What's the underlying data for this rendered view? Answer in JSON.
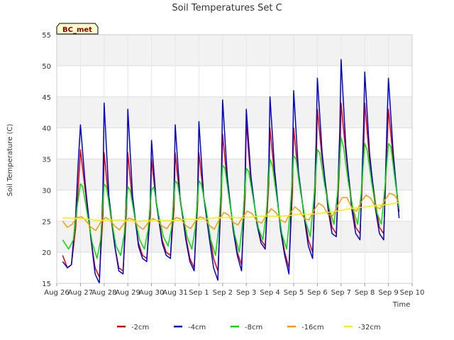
{
  "chart_data": {
    "type": "line",
    "title": "Soil Temperatures Set C",
    "xlabel": "Time",
    "ylabel": "Soil Temperature (C)",
    "badge": "BC_met",
    "ylim": [
      15,
      55
    ],
    "yticks": [
      15,
      20,
      25,
      30,
      35,
      40,
      45,
      50,
      55
    ],
    "xlim": [
      0,
      15
    ],
    "xticks": [
      {
        "x": 0,
        "label": "Aug 26"
      },
      {
        "x": 1,
        "label": "Aug 27"
      },
      {
        "x": 2,
        "label": "Aug 28"
      },
      {
        "x": 3,
        "label": "Aug 29"
      },
      {
        "x": 4,
        "label": "Aug 30"
      },
      {
        "x": 5,
        "label": "Aug 31"
      },
      {
        "x": 6,
        "label": "Sep 1"
      },
      {
        "x": 7,
        "label": "Sep 2"
      },
      {
        "x": 8,
        "label": "Sep 3"
      },
      {
        "x": 9,
        "label": "Sep 4"
      },
      {
        "x": 10,
        "label": "Sep 5"
      },
      {
        "x": 11,
        "label": "Sep 6"
      },
      {
        "x": 12,
        "label": "Sep 7"
      },
      {
        "x": 13,
        "label": "Sep 8"
      },
      {
        "x": 14,
        "label": "Sep 9"
      },
      {
        "x": 15,
        "label": "Sep 10"
      }
    ],
    "grid": true,
    "legend_position": "bottom",
    "series": [
      {
        "name": "-2cm",
        "color": "#dd0000",
        "x": [
          0.25,
          0.45,
          0.62,
          0.8,
          0.9,
          1.0,
          1.2,
          1.45,
          1.62,
          1.8,
          1.95,
          2.0,
          2.2,
          2.45,
          2.62,
          2.8,
          2.95,
          3.0,
          3.2,
          3.45,
          3.62,
          3.8,
          3.95,
          4.0,
          4.2,
          4.45,
          4.62,
          4.8,
          4.95,
          5.0,
          5.2,
          5.45,
          5.62,
          5.8,
          5.95,
          6.0,
          6.2,
          6.45,
          6.62,
          6.8,
          6.95,
          7.0,
          7.2,
          7.45,
          7.62,
          7.8,
          7.95,
          8.0,
          8.2,
          8.45,
          8.62,
          8.8,
          8.95,
          9.0,
          9.2,
          9.45,
          9.62,
          9.8,
          9.95,
          10.0,
          10.2,
          10.45,
          10.62,
          10.8,
          10.95,
          11.0,
          11.2,
          11.45,
          11.62,
          11.8,
          11.95,
          12.0,
          12.2,
          12.45,
          12.62,
          12.8,
          12.95,
          13.0,
          13.2,
          13.45,
          13.62,
          13.8,
          13.95,
          14.0,
          14.2,
          14.45
        ],
        "y": [
          19.5,
          17.5,
          18.0,
          24.0,
          30.0,
          36.5,
          30.0,
          22.0,
          17.5,
          16.0,
          26.0,
          36.0,
          28.0,
          21.0,
          17.5,
          17.0,
          27.0,
          36.0,
          28.0,
          21.5,
          19.5,
          19.0,
          26.0,
          35.0,
          28.0,
          22.0,
          20.0,
          19.5,
          27.0,
          36.0,
          28.5,
          22.5,
          19.0,
          17.5,
          28.0,
          36.0,
          29.0,
          23.0,
          19.0,
          17.0,
          29.0,
          39.0,
          31.0,
          24.0,
          20.0,
          18.0,
          29.0,
          41.0,
          31.0,
          25.0,
          22.0,
          21.0,
          31.0,
          40.0,
          32.0,
          24.0,
          20.0,
          17.5,
          30.0,
          40.0,
          32.0,
          26.0,
          22.0,
          20.0,
          34.0,
          43.0,
          35.0,
          28.0,
          24.0,
          23.0,
          35.0,
          44.0,
          36.0,
          28.0,
          24.0,
          23.0,
          36.0,
          44.0,
          35.0,
          28.0,
          24.0,
          23.0,
          38.0,
          43.0,
          35.0,
          26.5
        ]
      },
      {
        "name": "-4cm",
        "color": "#0000cc",
        "x": [
          0.25,
          0.45,
          0.62,
          0.8,
          0.9,
          1.0,
          1.2,
          1.45,
          1.62,
          1.8,
          1.95,
          2.0,
          2.2,
          2.45,
          2.62,
          2.8,
          2.95,
          3.0,
          3.2,
          3.45,
          3.62,
          3.8,
          3.95,
          4.0,
          4.2,
          4.45,
          4.62,
          4.8,
          4.95,
          5.0,
          5.2,
          5.45,
          5.62,
          5.8,
          5.95,
          6.0,
          6.2,
          6.45,
          6.62,
          6.8,
          6.95,
          7.0,
          7.2,
          7.45,
          7.62,
          7.8,
          7.95,
          8.0,
          8.2,
          8.45,
          8.62,
          8.8,
          8.95,
          9.0,
          9.2,
          9.45,
          9.62,
          9.8,
          9.95,
          10.0,
          10.2,
          10.45,
          10.62,
          10.8,
          10.95,
          11.0,
          11.2,
          11.45,
          11.62,
          11.8,
          11.95,
          12.0,
          12.2,
          12.45,
          12.62,
          12.8,
          12.95,
          13.0,
          13.2,
          13.45,
          13.62,
          13.8,
          13.95,
          14.0,
          14.2,
          14.45
        ],
        "y": [
          18.5,
          17.5,
          18.0,
          26.0,
          34.0,
          40.5,
          31.0,
          22.0,
          16.5,
          15.0,
          30.0,
          44.0,
          29.0,
          21.0,
          17.0,
          16.5,
          30.0,
          43.0,
          29.0,
          21.0,
          19.0,
          18.5,
          28.0,
          38.0,
          28.0,
          21.5,
          19.5,
          19.0,
          30.0,
          40.5,
          29.0,
          22.0,
          18.5,
          17.0,
          30.0,
          41.0,
          29.0,
          22.0,
          17.5,
          15.5,
          32.0,
          44.5,
          32.0,
          23.5,
          19.5,
          17.0,
          32.0,
          43.0,
          32.0,
          24.5,
          21.5,
          20.5,
          34.0,
          45.0,
          33.0,
          23.5,
          19.5,
          16.5,
          34.0,
          46.0,
          33.0,
          25.5,
          21.0,
          19.0,
          38.0,
          48.0,
          36.0,
          27.0,
          23.0,
          22.5,
          40.0,
          51.0,
          37.0,
          27.0,
          23.0,
          22.0,
          40.0,
          49.0,
          36.0,
          27.0,
          23.0,
          22.0,
          42.0,
          48.0,
          36.0,
          25.5
        ]
      },
      {
        "name": "-8cm",
        "color": "#00dd00",
        "x": [
          0.25,
          0.5,
          0.7,
          0.85,
          1.0,
          1.1,
          1.3,
          1.5,
          1.7,
          1.85,
          2.0,
          2.1,
          2.3,
          2.5,
          2.7,
          2.85,
          3.0,
          3.1,
          3.3,
          3.5,
          3.7,
          3.85,
          4.0,
          4.1,
          4.3,
          4.5,
          4.7,
          4.85,
          5.0,
          5.1,
          5.3,
          5.5,
          5.7,
          5.85,
          6.0,
          6.1,
          6.3,
          6.5,
          6.7,
          6.85,
          7.0,
          7.1,
          7.3,
          7.5,
          7.7,
          7.85,
          8.0,
          8.1,
          8.3,
          8.5,
          8.7,
          8.85,
          9.0,
          9.1,
          9.3,
          9.5,
          9.7,
          9.85,
          10.0,
          10.1,
          10.3,
          10.5,
          10.7,
          10.85,
          11.0,
          11.1,
          11.3,
          11.5,
          11.7,
          11.85,
          12.0,
          12.1,
          12.3,
          12.5,
          12.7,
          12.85,
          13.0,
          13.1,
          13.3,
          13.5,
          13.7,
          13.85,
          14.0,
          14.1,
          14.3,
          14.45
        ],
        "y": [
          22.0,
          20.5,
          22.0,
          27.0,
          31.0,
          30.5,
          26.0,
          21.5,
          19.0,
          22.0,
          31.0,
          30.5,
          25.5,
          21.0,
          19.5,
          23.0,
          30.5,
          30.0,
          25.5,
          22.0,
          20.5,
          23.5,
          30.0,
          30.5,
          26.0,
          22.5,
          21.0,
          24.0,
          31.5,
          31.0,
          26.5,
          22.5,
          20.5,
          24.0,
          31.5,
          31.0,
          27.0,
          22.0,
          19.5,
          24.5,
          34.0,
          33.5,
          28.0,
          23.0,
          20.0,
          25.0,
          33.5,
          33.0,
          28.5,
          24.0,
          22.0,
          26.5,
          35.0,
          34.0,
          28.5,
          23.0,
          20.5,
          26.5,
          35.5,
          35.0,
          29.5,
          25.0,
          22.5,
          28.5,
          36.5,
          36.0,
          31.0,
          27.0,
          24.5,
          29.5,
          38.5,
          37.0,
          31.5,
          27.0,
          24.5,
          29.5,
          37.5,
          36.5,
          31.0,
          26.5,
          24.5,
          30.5,
          37.5,
          37.0,
          31.0,
          27.0
        ]
      },
      {
        "name": "-16cm",
        "color": "#ff9900",
        "x": [
          0.25,
          0.45,
          0.65,
          0.85,
          1.05,
          1.25,
          1.45,
          1.65,
          1.85,
          2.05,
          2.25,
          2.45,
          2.65,
          2.85,
          3.05,
          3.25,
          3.45,
          3.65,
          3.85,
          4.05,
          4.25,
          4.45,
          4.65,
          4.85,
          5.05,
          5.25,
          5.45,
          5.65,
          5.85,
          6.05,
          6.25,
          6.45,
          6.65,
          6.85,
          7.05,
          7.25,
          7.45,
          7.65,
          7.85,
          8.05,
          8.25,
          8.45,
          8.65,
          8.85,
          9.05,
          9.25,
          9.45,
          9.65,
          9.85,
          10.05,
          10.25,
          10.45,
          10.65,
          10.85,
          11.05,
          11.25,
          11.45,
          11.65,
          11.85,
          12.05,
          12.25,
          12.45,
          12.65,
          12.85,
          13.05,
          13.25,
          13.45,
          13.65,
          13.85,
          14.05,
          14.25,
          14.45
        ],
        "y": [
          25.0,
          24.0,
          24.5,
          25.6,
          25.7,
          25.0,
          24.0,
          23.5,
          24.8,
          25.6,
          25.2,
          24.2,
          23.6,
          24.7,
          25.5,
          25.2,
          24.2,
          23.7,
          24.7,
          25.4,
          25.1,
          24.2,
          23.8,
          24.9,
          25.6,
          25.3,
          24.3,
          23.8,
          25.0,
          25.7,
          25.4,
          24.3,
          23.7,
          25.2,
          26.4,
          26.0,
          24.8,
          24.4,
          25.7,
          26.6,
          26.2,
          25.0,
          24.7,
          26.0,
          27.0,
          26.4,
          25.2,
          24.8,
          26.3,
          27.3,
          26.7,
          25.4,
          25.2,
          26.7,
          27.9,
          27.4,
          26.1,
          25.9,
          27.5,
          28.8,
          28.8,
          27.2,
          26.6,
          28.1,
          29.2,
          28.7,
          27.3,
          27.0,
          28.4,
          29.5,
          29.2,
          28.0
        ]
      },
      {
        "name": "-32cm",
        "color": "#ffee00",
        "x": [
          0.25,
          0.6,
          1.0,
          1.4,
          1.8,
          2.2,
          2.6,
          3.0,
          3.4,
          3.8,
          4.2,
          4.6,
          5.0,
          5.4,
          5.8,
          6.2,
          6.6,
          7.0,
          7.4,
          7.8,
          8.2,
          8.6,
          9.0,
          9.4,
          9.8,
          10.2,
          10.6,
          11.0,
          11.4,
          11.8,
          12.2,
          12.6,
          13.0,
          13.4,
          13.8,
          14.2,
          14.45
        ],
        "y": [
          25.5,
          25.5,
          25.4,
          25.3,
          25.1,
          25.2,
          25.2,
          25.1,
          25.0,
          25.1,
          25.2,
          25.1,
          25.1,
          25.3,
          25.3,
          25.3,
          25.5,
          25.6,
          25.6,
          25.5,
          25.7,
          25.8,
          25.8,
          25.8,
          25.9,
          26.1,
          26.1,
          26.2,
          26.4,
          26.6,
          26.9,
          27.1,
          27.3,
          27.5,
          27.6,
          27.8,
          28.0
        ]
      }
    ]
  }
}
